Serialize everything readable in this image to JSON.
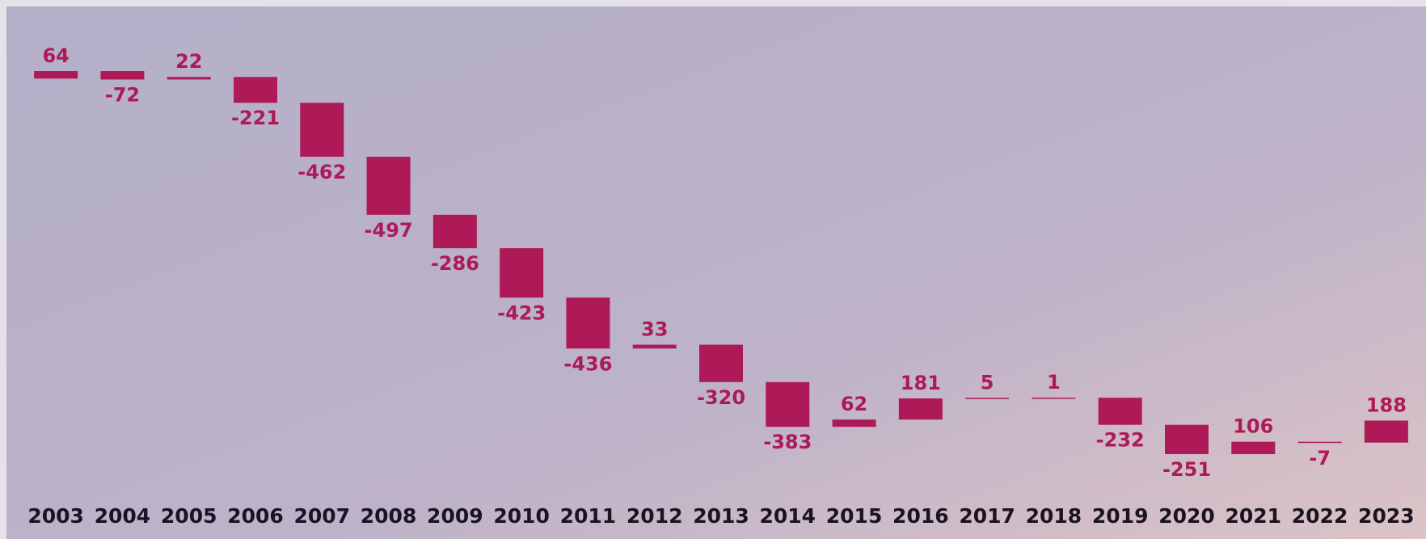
{
  "chart_data": {
    "type": "waterfall",
    "categories": [
      "2003",
      "2004",
      "2005",
      "2006",
      "2007",
      "2008",
      "2009",
      "2010",
      "2011",
      "2012",
      "2013",
      "2014",
      "2015",
      "2016",
      "2017",
      "2018",
      "2019",
      "2020",
      "2021",
      "2022",
      "2023"
    ],
    "values": [
      64,
      -72,
      22,
      -221,
      -462,
      -497,
      -286,
      -423,
      -436,
      33,
      -320,
      -383,
      62,
      181,
      5,
      1,
      -232,
      -251,
      106,
      -7,
      188
    ],
    "color": "#ad1a57"
  }
}
